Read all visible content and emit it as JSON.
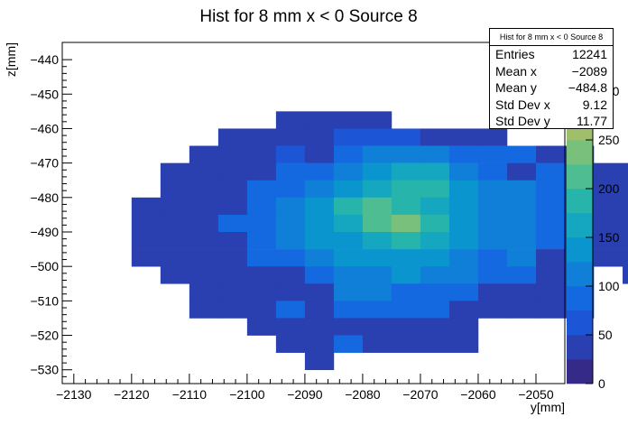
{
  "chart_data": {
    "type": "heatmap",
    "title": "Hist for 8 mm x < 0 Source 8",
    "xlabel": "y[mm]",
    "ylabel": "z[mm]",
    "xlim": [
      -2132,
      -2045
    ],
    "ylim": [
      -534,
      -435
    ],
    "x_ticks": [
      -2130,
      -2120,
      -2110,
      -2100,
      -2090,
      -2080,
      -2070,
      -2060,
      -2050
    ],
    "x_tick_labels": [
      "−2130",
      "−2120",
      "−2110",
      "−2100",
      "−2090",
      "−2080",
      "−2070",
      "−2060",
      "−2050"
    ],
    "y_ticks": [
      -440,
      -450,
      -460,
      -470,
      -480,
      -490,
      -500,
      -510,
      -520,
      -530
    ],
    "y_tick_labels": [
      "−440",
      "−450",
      "−460",
      "−470",
      "−480",
      "−490",
      "−500",
      "−510",
      "−520",
      "−530"
    ],
    "z_ticks": [
      0,
      50,
      100,
      150,
      200,
      250,
      300
    ],
    "z_tick_labels": [
      "0",
      "50",
      "100",
      "150",
      "200",
      "250",
      "300"
    ],
    "zlim": [
      0,
      350
    ],
    "colormap": [
      "#352a87",
      "#2a3fb0",
      "#1c55d6",
      "#1569e0",
      "#0f7fd8",
      "#0a95cf",
      "#16a7c0",
      "#27b4aa",
      "#4fbd92",
      "#78c07c",
      "#a0bf6a",
      "#c5bc5a",
      "#e2bc4d",
      "#f9d43a"
    ],
    "bin_width_x": 5,
    "bin_width_z": 5,
    "rows": [
      {
        "z_low": -460,
        "x_low": -2095,
        "values": [
          40,
          40,
          40,
          40
        ]
      },
      {
        "z_low": -465,
        "x_low": -2105,
        "values": [
          40,
          40,
          40,
          40,
          70,
          70,
          70,
          40,
          40,
          40
        ]
      },
      {
        "z_low": -470,
        "x_low": -2110,
        "values": [
          40,
          40,
          40,
          70,
          40,
          75,
          110,
          110,
          110,
          80,
          80,
          75,
          40,
          40
        ]
      },
      {
        "z_low": -475,
        "x_low": -2115,
        "values": [
          40,
          40,
          40,
          40,
          75,
          80,
          110,
          130,
          160,
          160,
          110,
          90,
          40,
          75,
          40,
          40,
          40
        ]
      },
      {
        "z_low": -480,
        "x_low": -2115,
        "values": [
          40,
          40,
          40,
          75,
          80,
          110,
          130,
          160,
          180,
          180,
          140,
          110,
          110,
          75,
          40,
          40,
          40
        ]
      },
      {
        "z_low": -485,
        "x_low": -2120,
        "values": [
          40,
          40,
          40,
          40,
          75,
          110,
          130,
          180,
          200,
          180,
          160,
          130,
          110,
          110,
          75,
          40,
          40,
          40,
          40
        ]
      },
      {
        "z_low": -490,
        "x_low": -2120,
        "values": [
          40,
          40,
          40,
          75,
          80,
          110,
          130,
          160,
          200,
          230,
          180,
          140,
          110,
          110,
          75,
          40,
          40,
          40,
          40
        ]
      },
      {
        "z_low": -495,
        "x_low": -2120,
        "values": [
          40,
          40,
          40,
          40,
          75,
          110,
          130,
          140,
          160,
          180,
          160,
          130,
          110,
          110,
          75,
          40,
          40,
          40,
          40
        ]
      },
      {
        "z_low": -500,
        "x_low": -2120,
        "values": [
          40,
          40,
          40,
          40,
          75,
          80,
          110,
          130,
          140,
          140,
          130,
          110,
          80,
          110,
          40,
          40,
          40,
          40,
          40
        ]
      },
      {
        "z_low": -505,
        "x_low": -2115,
        "values": [
          40,
          40,
          40,
          40,
          40,
          75,
          110,
          110,
          130,
          110,
          110,
          80,
          75,
          40,
          40,
          0,
          40
        ]
      },
      {
        "z_low": -510,
        "x_low": -2110,
        "values": [
          40,
          40,
          40,
          40,
          40,
          110,
          110,
          80,
          75,
          75,
          40,
          40,
          40,
          40
        ]
      },
      {
        "z_low": -515,
        "x_low": -2110,
        "values": [
          40,
          40,
          40,
          75,
          40,
          75,
          75,
          75,
          75,
          40,
          40,
          40,
          40,
          40
        ]
      },
      {
        "z_low": -520,
        "x_low": -2100,
        "values": [
          40,
          40,
          40,
          40,
          40,
          40,
          40,
          40
        ]
      },
      {
        "z_low": -525,
        "x_low": -2095,
        "values": [
          40,
          40,
          75,
          40,
          40,
          40,
          40
        ]
      },
      {
        "z_low": -530,
        "x_low": -2090,
        "values": [
          40
        ]
      }
    ],
    "stats": {
      "title": "Hist for 8 mm x < 0 Source 8",
      "entries_label": "Entries",
      "entries": "12241",
      "mean_x_label": "Mean x",
      "mean_x": "−2089",
      "mean_y_label": "Mean y",
      "mean_y": "−484.8",
      "std_x_label": "Std Dev x",
      "std_x": "9.12",
      "std_y_label": "Std Dev y",
      "std_y": "11.77"
    }
  }
}
